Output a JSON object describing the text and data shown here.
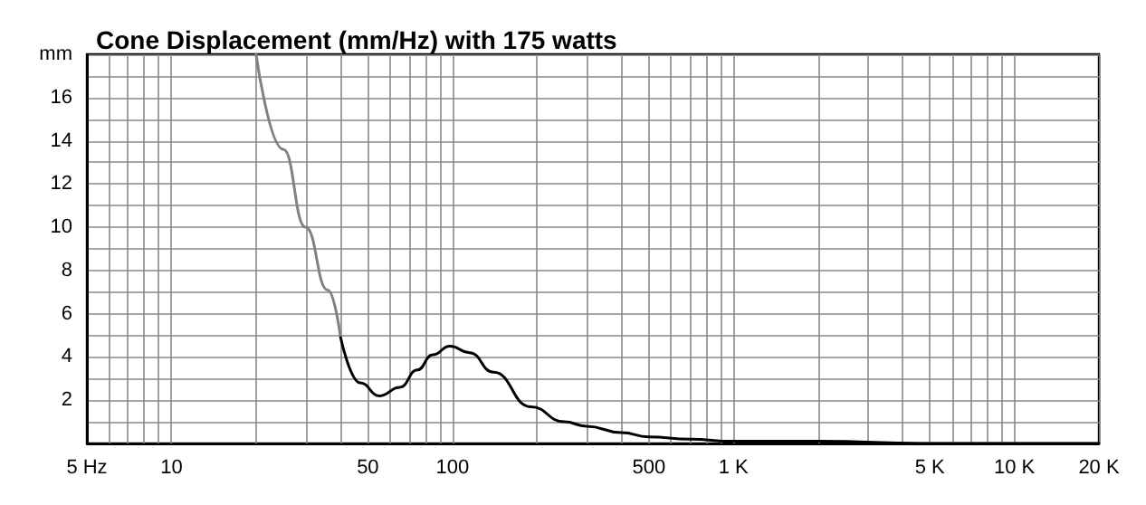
{
  "chart_data": {
    "type": "line",
    "title": "Cone Displacement (mm/Hz) with 175 watts",
    "series": [
      {
        "color": "#808080",
        "x": [
          20,
          25,
          30,
          36,
          40
        ],
        "values": [
          18,
          13.6,
          10,
          7.1,
          4.9
        ]
      },
      {
        "color": "#000000",
        "x": [
          40,
          47,
          55,
          65,
          75,
          85,
          98,
          115,
          140,
          190,
          250,
          300,
          400,
          500,
          700,
          1000,
          2000,
          5000,
          20000
        ],
        "values": [
          4.9,
          2.8,
          2.2,
          2.6,
          3.4,
          4.1,
          4.5,
          4.2,
          3.3,
          1.7,
          1.0,
          0.8,
          0.5,
          0.3,
          0.2,
          0.1,
          0.1,
          0,
          0
        ]
      }
    ],
    "log": "x",
    "xlim": [
      5,
      20000
    ],
    "xticks": [
      {
        "value": 5,
        "label": "5 Hz"
      },
      {
        "value": 6,
        "label": null
      },
      {
        "value": 7,
        "label": null
      },
      {
        "value": 8,
        "label": null
      },
      {
        "value": 9,
        "label": null
      },
      10,
      {
        "value": 20,
        "label": null
      },
      {
        "value": 30,
        "label": null
      },
      {
        "value": 40,
        "label": null
      },
      50,
      {
        "value": 60,
        "label": null
      },
      {
        "value": 70,
        "label": null
      },
      {
        "value": 80,
        "label": null
      },
      {
        "value": 90,
        "label": null
      },
      100,
      {
        "value": 200,
        "label": null
      },
      {
        "value": 300,
        "label": null
      },
      {
        "value": 400,
        "label": null
      },
      500,
      {
        "value": 600,
        "label": null
      },
      {
        "value": 700,
        "label": null
      },
      {
        "value": 800,
        "label": null
      },
      {
        "value": 900,
        "label": null
      },
      {
        "value": 1000,
        "label": "1 K"
      },
      {
        "value": 2000,
        "label": null
      },
      {
        "value": 3000,
        "label": null
      },
      {
        "value": 4000,
        "label": null
      },
      {
        "value": 5000,
        "label": "5 K"
      },
      {
        "value": 6000,
        "label": null
      },
      {
        "value": 7000,
        "label": null
      },
      {
        "value": 8000,
        "label": null
      },
      {
        "value": 9000,
        "label": null
      },
      {
        "value": 10000,
        "label": "10 K"
      },
      {
        "value": 20000,
        "label": "20 K"
      }
    ],
    "ylim": [
      0,
      18
    ],
    "yticks": [
      {
        "value": 0,
        "label": null
      },
      {
        "value": 1,
        "label": null
      },
      2,
      {
        "value": 3,
        "label": null
      },
      4,
      {
        "value": 5,
        "label": null
      },
      6,
      {
        "value": 7,
        "label": null
      },
      8,
      {
        "value": 9,
        "label": null
      },
      10,
      {
        "value": 11,
        "label": null
      },
      12,
      {
        "value": 13,
        "label": null
      },
      14,
      {
        "value": 15,
        "label": null
      },
      16,
      {
        "value": 17,
        "label": null
      },
      {
        "value": 18,
        "label": "mm"
      }
    ],
    "grid": true,
    "marker": "none",
    "line_style": "solid"
  }
}
